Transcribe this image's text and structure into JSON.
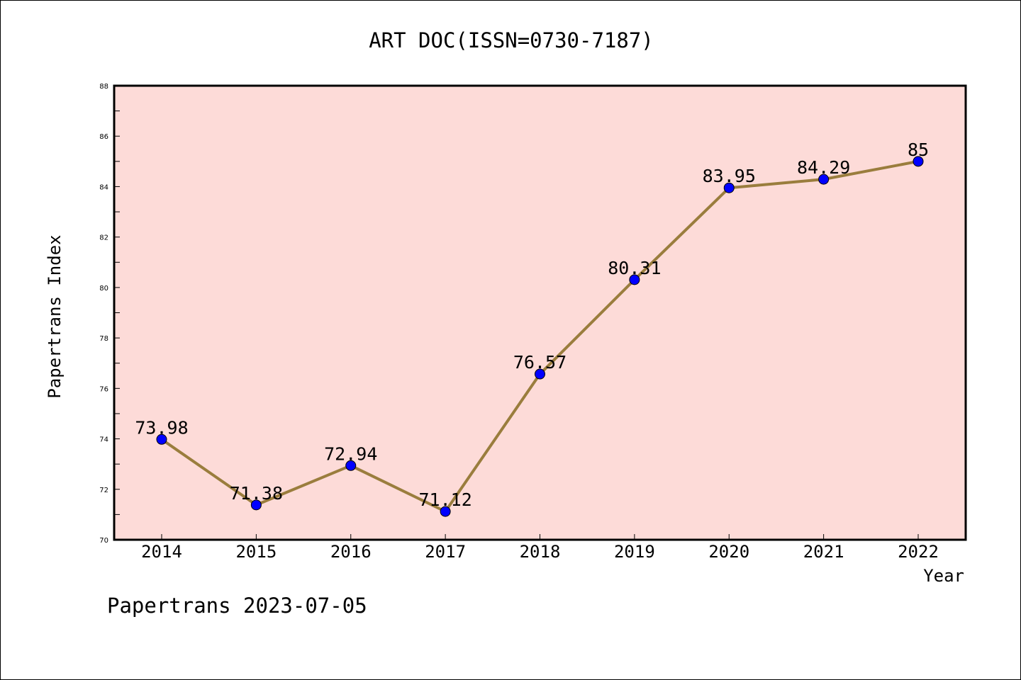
{
  "chart_data": {
    "type": "line",
    "title": "ART DOC(ISSN=0730-7187)",
    "xlabel": "Year",
    "ylabel": "Papertrans Index",
    "categories": [
      "2014",
      "2015",
      "2016",
      "2017",
      "2018",
      "2019",
      "2020",
      "2021",
      "2022"
    ],
    "series": [
      {
        "values": [
          73.98,
          71.38,
          72.94,
          71.12,
          76.57,
          80.31,
          83.95,
          84.29,
          85
        ],
        "data_labels": [
          "73.98",
          "71.38",
          "72.94",
          "71.12",
          "76.57",
          "80.31",
          "83.95",
          "84.29",
          "85"
        ]
      }
    ],
    "ylim": [
      70,
      88
    ],
    "yticks": [
      70,
      72,
      74,
      76,
      78,
      80,
      82,
      84,
      86,
      88
    ],
    "ytick_labels": [
      "70",
      "72",
      "74",
      "76",
      "78",
      "80",
      "82",
      "84",
      "86",
      "88"
    ],
    "grid": false,
    "legend": "none",
    "colors": {
      "plot_background": "#fddbd8",
      "line": "#9a7d3d",
      "marker": "#0000ff"
    }
  },
  "footer": {
    "text": "Papertrans 2023-07-05"
  }
}
